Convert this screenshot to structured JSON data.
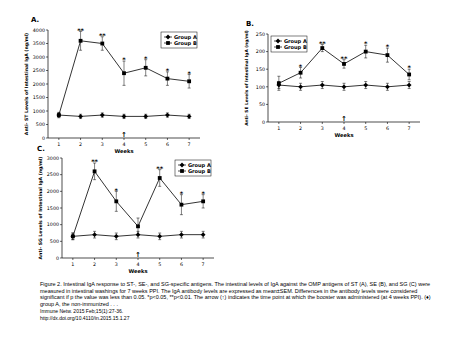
{
  "chart_data": [
    {
      "type": "line",
      "title": "A.",
      "x_label": "Weeks",
      "y_label": "Anti- ST Levels of Intestinal IgA (ng/ml)",
      "x": [
        1,
        2,
        3,
        4,
        5,
        6,
        7
      ],
      "xlim": [
        0.5,
        7.5
      ],
      "xticks": [
        1,
        2,
        3,
        4,
        5,
        6,
        7
      ],
      "ylim": [
        0,
        4000
      ],
      "yticks": [
        0,
        500,
        1000,
        1500,
        2000,
        2500,
        3000,
        3500,
        4000
      ],
      "grid": false,
      "legend": "upper right",
      "series": [
        {
          "name": "Group A",
          "color": "#000000",
          "marker": "diamond",
          "values": [
            850,
            800,
            850,
            800,
            800,
            850,
            800
          ],
          "errors": [
            80,
            80,
            80,
            80,
            80,
            80,
            80
          ]
        },
        {
          "name": "Group B",
          "color": "#000000",
          "marker": "square",
          "values": [
            850,
            3600,
            3500,
            2400,
            2600,
            2200,
            2100
          ],
          "errors": [
            100,
            350,
            250,
            450,
            300,
            250,
            250
          ]
        }
      ],
      "annotations": [
        {
          "x": 2,
          "text": "**"
        },
        {
          "x": 3,
          "text": "**"
        },
        {
          "x": 4,
          "text": "*"
        },
        {
          "x": 5,
          "text": "*"
        },
        {
          "x": 6,
          "text": "*"
        },
        {
          "x": 7,
          "text": "*"
        }
      ],
      "arrows": [
        {
          "x": 4,
          "text": "↑"
        }
      ]
    },
    {
      "type": "line",
      "title": "B.",
      "x_label": "Weeks",
      "y_label": "Anti- SE Levels of Intestinal IgA (ng/ml)",
      "x": [
        1,
        2,
        3,
        4,
        5,
        6,
        7
      ],
      "xlim": [
        0.5,
        7.5
      ],
      "xticks": [
        1,
        2,
        3,
        4,
        5,
        6,
        7
      ],
      "ylim": [
        0,
        250
      ],
      "yticks": [
        0,
        50,
        100,
        150,
        200,
        250
      ],
      "grid": false,
      "legend": "upper left",
      "series": [
        {
          "name": "Group A",
          "color": "#000000",
          "marker": "diamond",
          "values": [
            105,
            100,
            105,
            100,
            105,
            100,
            105
          ],
          "errors": [
            10,
            10,
            10,
            10,
            10,
            10,
            10
          ]
        },
        {
          "name": "Group B",
          "color": "#000000",
          "marker": "square",
          "values": [
            110,
            140,
            210,
            165,
            200,
            190,
            135
          ],
          "errors": [
            20,
            15,
            10,
            12,
            18,
            20,
            15
          ]
        }
      ],
      "annotations": [
        {
          "x": 2,
          "text": "*"
        },
        {
          "x": 3,
          "text": "**"
        },
        {
          "x": 4,
          "text": "**"
        },
        {
          "x": 5,
          "text": "*"
        },
        {
          "x": 6,
          "text": "*"
        },
        {
          "x": 7,
          "text": "*"
        }
      ],
      "arrows": [
        {
          "x": 4,
          "text": "↑"
        }
      ]
    },
    {
      "type": "line",
      "title": "C.",
      "x_label": "Weeks",
      "y_label": "Anti- SG Levels of Intestinal IgA (ng/ml)",
      "x": [
        1,
        2,
        3,
        4,
        5,
        6,
        7
      ],
      "xlim": [
        0.5,
        7.5
      ],
      "xticks": [
        1,
        2,
        3,
        4,
        5,
        6,
        7
      ],
      "ylim": [
        0,
        3000
      ],
      "yticks": [
        0,
        500,
        1000,
        1500,
        2000,
        2500,
        3000
      ],
      "grid": false,
      "legend": "upper right",
      "series": [
        {
          "name": "Group A",
          "color": "#000000",
          "marker": "diamond",
          "values": [
            650,
            700,
            650,
            700,
            650,
            700,
            700
          ],
          "errors": [
            100,
            100,
            100,
            100,
            100,
            100,
            100
          ]
        },
        {
          "name": "Group B",
          "color": "#000000",
          "marker": "square",
          "values": [
            650,
            2600,
            1700,
            950,
            2400,
            1600,
            1700
          ],
          "errors": [
            100,
            250,
            300,
            250,
            250,
            300,
            200
          ]
        }
      ],
      "annotations": [
        {
          "x": 2,
          "text": "**"
        },
        {
          "x": 3,
          "text": "*"
        },
        {
          "x": 5,
          "text": "**"
        },
        {
          "x": 6,
          "text": "*"
        },
        {
          "x": 7,
          "text": "*"
        }
      ],
      "arrows": [
        {
          "x": 4,
          "text": "↑"
        }
      ]
    }
  ],
  "caption": "Figure 2. Intestinal IgA response to ST-, SE-, and SG-specific antigens. The intestinal levels of IgA against the OMP antigens of ST (A), SE (B), and SG (C) were measured in intestinal washings for 7 weeks PPI. The IgA antibody levels are expressed as mean±SEM. Differences in the antibody levels were considered significant if p the value was less than 0.05. *p<0.05, **p<0.01. The arrow (↑) indicates the time point at which the booster was administered (at 4 weeks PPI). (♦) group A, the non-immunized . . .",
  "citation": "Immune Netw. 2015 Feb;15(1):27-36.",
  "doi": "http://dx.doi.org/10.4110/in.2015.15.1.27"
}
